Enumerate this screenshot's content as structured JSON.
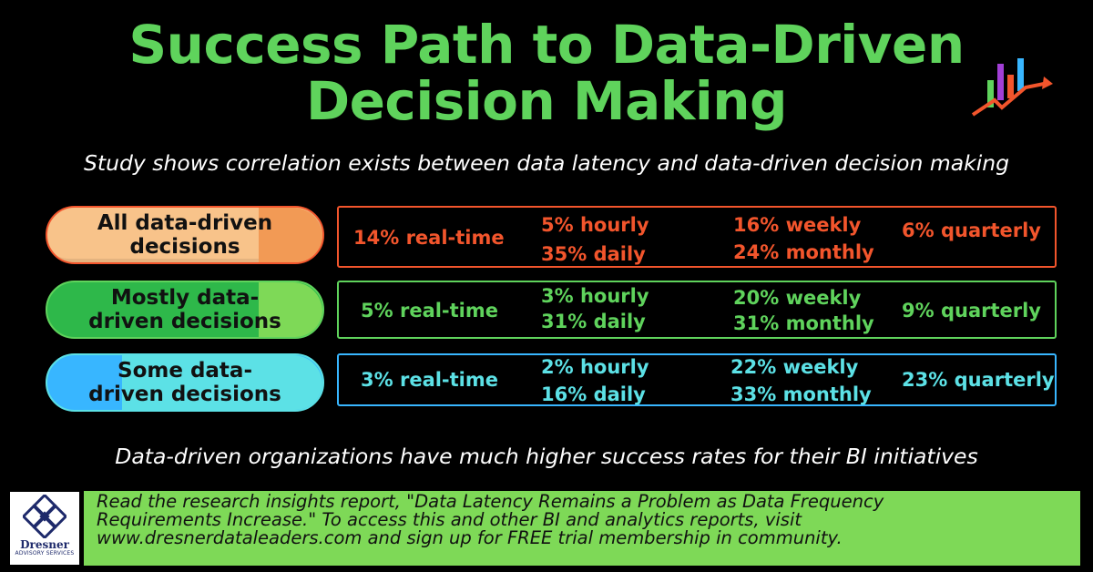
{
  "title": {
    "line1": "Success Path to Data-Driven",
    "line2": "Decision Making"
  },
  "subtitle": "Study shows correlation exists between data latency and data-driven decision making",
  "rows": [
    {
      "label": "All data-driven decisions",
      "color": "#f2552c",
      "pill_light": "#f8c38a",
      "pill_dark": "#f29a55",
      "real_time": "14% real-time",
      "hourly": "5% hourly",
      "daily": "35% daily",
      "weekly": "16% weekly",
      "monthly": "24% monthly",
      "quarterly": "6% quarterly"
    },
    {
      "label": "Mostly data-driven decisions",
      "color": "#5fd35c",
      "pill_light": "#7ed957",
      "pill_dark": "#2eb84a",
      "real_time": "5% real-time",
      "hourly": "3% hourly",
      "daily": "31% daily",
      "weekly": "20% weekly",
      "monthly": "31% monthly",
      "quarterly": "9% quarterly"
    },
    {
      "label": "Some data-driven decisions",
      "color": "#5ce1e6",
      "pill_light": "#5ce1e6",
      "pill_dark": "#38b6ff",
      "real_time": "3% real-time",
      "hourly": "2% hourly",
      "daily": "16% daily",
      "weekly": "22% weekly",
      "monthly": "33% monthly",
      "quarterly": "23% quarterly"
    }
  ],
  "bottom_note": "Data-driven organizations have much higher success rates for their BI initiatives",
  "logo": {
    "name": "Dresner",
    "sub": "ADVISORY SERVICES"
  },
  "cta": {
    "line1": "Read the research insights report, \"Data Latency Remains a Problem as Data Frequency",
    "line2": "Requirements Increase.\" To access this and other BI and analytics reports, visit",
    "line3": "www.dresnerdataleaders.com and sign up for FREE trial membership in community."
  },
  "colors": {
    "title_green": "#5fd35c",
    "background": "#000000",
    "cta_green": "#7ed957"
  },
  "icons": [
    "bar-chart-trend-icon",
    "dresner-knot-logo-icon"
  ]
}
